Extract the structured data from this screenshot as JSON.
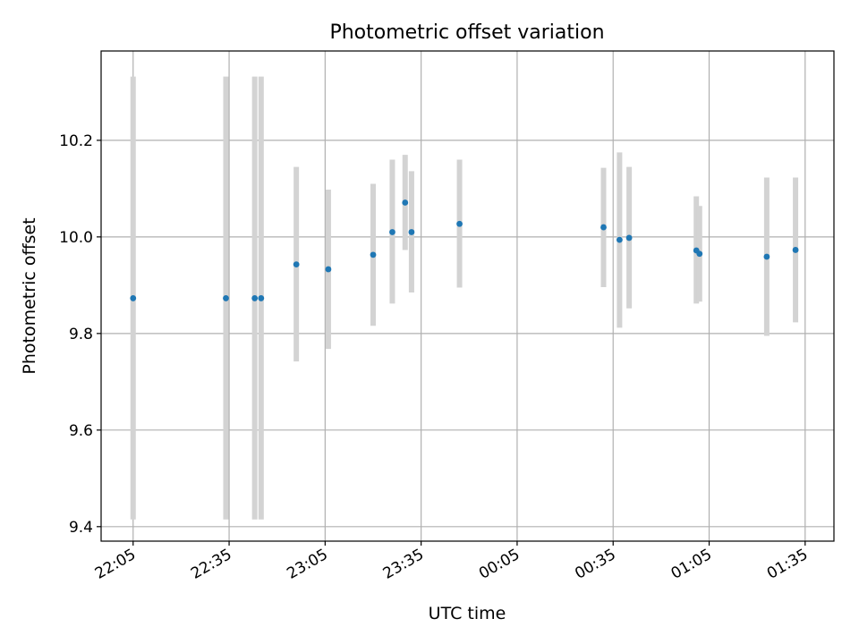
{
  "chart_data": {
    "type": "scatter",
    "title": "Photometric offset variation",
    "xlabel": "UTC time",
    "ylabel": "Photometric offset",
    "x_tick_labels": [
      "22:05",
      "22:35",
      "23:05",
      "23:35",
      "00:05",
      "00:35",
      "01:05",
      "01:35"
    ],
    "x_tick_times": [
      "22:05",
      "22:35",
      "23:05",
      "23:35",
      "00:05",
      "00:35",
      "01:05",
      "01:35"
    ],
    "y_ticks": [
      9.4,
      9.6,
      9.8,
      10.0,
      10.2
    ],
    "y_tick_labels": [
      "9.4",
      "9.6",
      "9.8",
      "10.0",
      "10.2"
    ],
    "xlim": [
      "21:55",
      "01:44"
    ],
    "ylim": [
      9.37,
      10.385
    ],
    "grid": true,
    "point_color": "#1f77b4",
    "errorbar_color": "#d3d3d3",
    "points": [
      {
        "x": "22:05",
        "y": 9.873,
        "ylow": 9.415,
        "yhigh": 10.332
      },
      {
        "x": "22:34",
        "y": 9.873,
        "ylow": 9.415,
        "yhigh": 10.332
      },
      {
        "x": "22:43",
        "y": 9.873,
        "ylow": 9.415,
        "yhigh": 10.332
      },
      {
        "x": "22:45",
        "y": 9.873,
        "ylow": 9.415,
        "yhigh": 10.332
      },
      {
        "x": "22:56",
        "y": 9.943,
        "ylow": 9.742,
        "yhigh": 10.145
      },
      {
        "x": "23:06",
        "y": 9.933,
        "ylow": 9.768,
        "yhigh": 10.098
      },
      {
        "x": "23:20",
        "y": 9.963,
        "ylow": 9.816,
        "yhigh": 10.11
      },
      {
        "x": "23:26",
        "y": 10.01,
        "ylow": 9.862,
        "yhigh": 10.16
      },
      {
        "x": "23:30",
        "y": 10.071,
        "ylow": 9.973,
        "yhigh": 10.17
      },
      {
        "x": "23:32",
        "y": 10.01,
        "ylow": 9.885,
        "yhigh": 10.136
      },
      {
        "x": "23:47",
        "y": 10.027,
        "ylow": 9.895,
        "yhigh": 10.16
      },
      {
        "x": "00:32",
        "y": 10.02,
        "ylow": 9.896,
        "yhigh": 10.143
      },
      {
        "x": "00:37",
        "y": 9.994,
        "ylow": 9.812,
        "yhigh": 10.175
      },
      {
        "x": "00:40",
        "y": 9.998,
        "ylow": 9.852,
        "yhigh": 10.145
      },
      {
        "x": "01:01",
        "y": 9.972,
        "ylow": 9.862,
        "yhigh": 10.084
      },
      {
        "x": "01:02",
        "y": 9.965,
        "ylow": 9.866,
        "yhigh": 10.064
      },
      {
        "x": "01:23",
        "y": 9.959,
        "ylow": 9.795,
        "yhigh": 10.123
      },
      {
        "x": "01:32",
        "y": 9.973,
        "ylow": 9.823,
        "yhigh": 10.123
      }
    ]
  }
}
